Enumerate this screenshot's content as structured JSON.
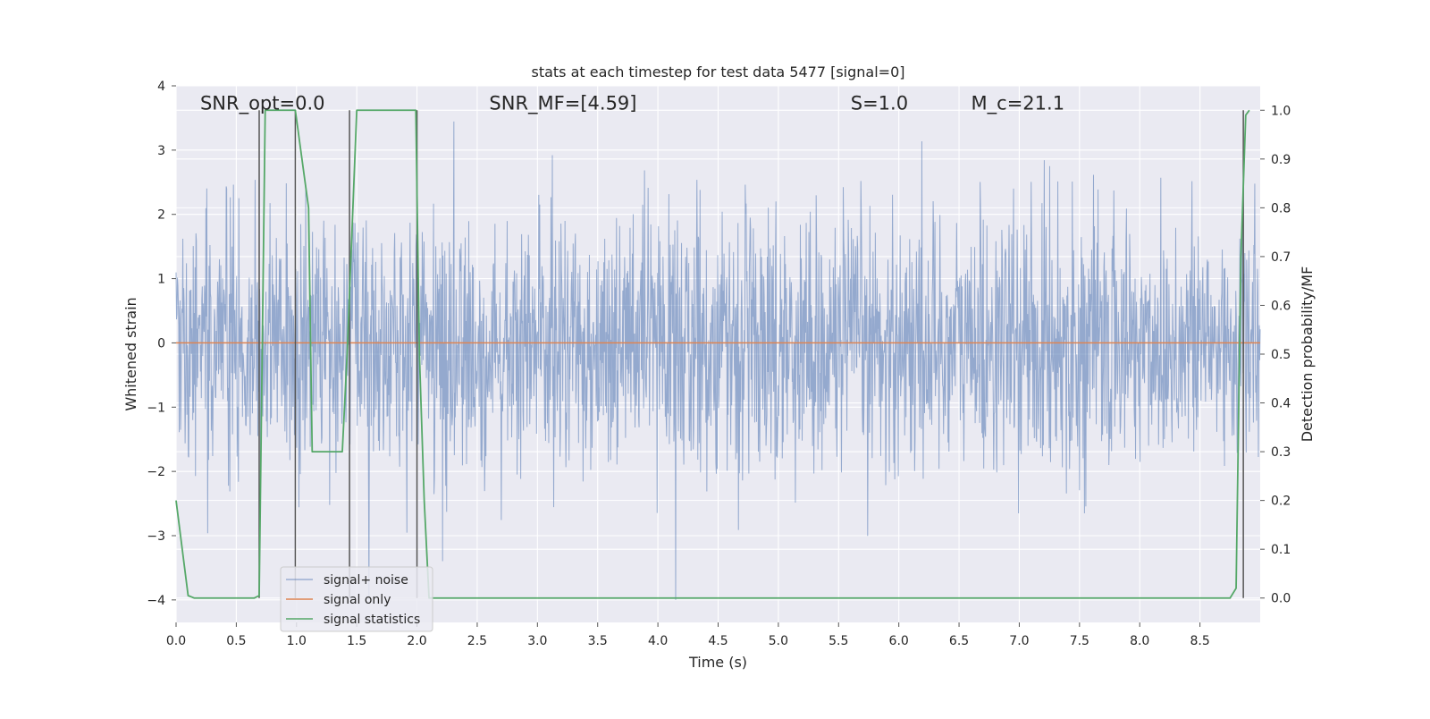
{
  "chart_data": {
    "type": "line",
    "title": "stats at each timestep for test data 5477 [signal=0]",
    "xlabel": "Time (s)",
    "ylabel": "Whitened strain",
    "y2label": "Detection probability/MF",
    "xlim": [
      0.0,
      9.0
    ],
    "ylim": [
      -4.35,
      4.0
    ],
    "y2lim": [
      -0.05,
      1.05
    ],
    "xticks": [
      "0.0",
      "0.5",
      "1.0",
      "1.5",
      "2.0",
      "2.5",
      "3.0",
      "3.5",
      "4.0",
      "4.5",
      "5.0",
      "5.5",
      "6.0",
      "6.5",
      "7.0",
      "7.5",
      "8.0",
      "8.5"
    ],
    "yticks": [
      "4",
      "3",
      "2",
      "1",
      "0",
      "−1",
      "−2",
      "−3",
      "−4"
    ],
    "y2ticks": [
      "1.0",
      "0.9",
      "0.8",
      "0.7",
      "0.6",
      "0.5",
      "0.4",
      "0.3",
      "0.2",
      "0.1",
      "0.0"
    ],
    "grid": true,
    "legend_position": "lower-left",
    "annotations": [
      {
        "text": "SNR_opt=0.0",
        "x": 0.2
      },
      {
        "text": "SNR_MF=[4.59]",
        "x": 2.6
      },
      {
        "text": "S=1.0",
        "x": 5.6
      },
      {
        "text": "M_c=21.1",
        "x": 6.6
      }
    ],
    "annotation_y": 3.63,
    "series": [
      {
        "name": "signal+ noise",
        "color": "#4c72b0",
        "axis": "left",
        "description_values": "whitened Gaussian noise band, mostly within ±2, spikes to about ±3.6",
        "x_range": [
          0.0,
          9.0
        ],
        "envelope": [
          -2.0,
          2.0
        ]
      },
      {
        "name": "signal only",
        "color": "#dd8452",
        "axis": "left",
        "x": [
          0.0,
          9.0
        ],
        "y": [
          0.0,
          0.0
        ]
      },
      {
        "name": "signal statistics",
        "color": "#55a868",
        "axis": "right",
        "x": [
          0.0,
          0.1,
          0.15,
          0.65,
          0.69,
          0.74,
          0.99,
          1.1,
          1.13,
          1.38,
          1.42,
          1.5,
          1.99,
          2.02,
          2.06,
          2.1,
          8.75,
          8.8,
          8.84,
          8.88,
          8.91
        ],
        "y": [
          0.2,
          0.005,
          0.0,
          0.0,
          0.005,
          1.0,
          1.0,
          0.8,
          0.3,
          0.3,
          0.5,
          1.0,
          1.0,
          0.5,
          0.2,
          0.0,
          0.0,
          0.02,
          0.7,
          0.99,
          1.0
        ]
      }
    ],
    "vertical_markers_s": [
      0.69,
      0.99,
      1.44,
      2.0,
      8.86
    ]
  }
}
